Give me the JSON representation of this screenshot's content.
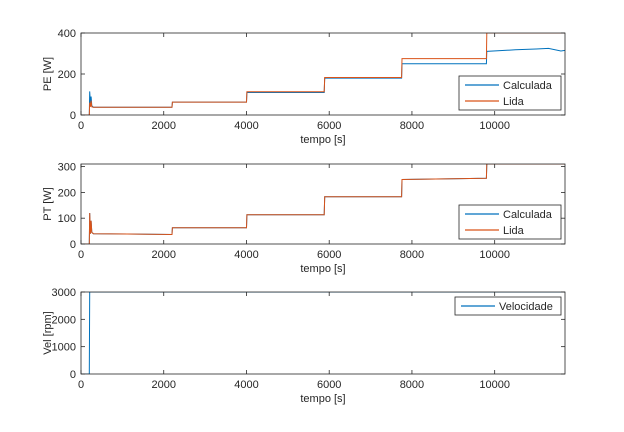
{
  "chart_data": [
    {
      "type": "line",
      "ylabel": "PE [W]",
      "xlabel": "tempo [s]",
      "xlim": [
        0,
        11700
      ],
      "ylim": [
        0,
        400
      ],
      "xticks": [
        "0",
        "2000",
        "4000",
        "6000",
        "8000",
        "10000"
      ],
      "yticks": [
        "0",
        "200",
        "400"
      ],
      "legend_position": "bottom-right",
      "series": [
        {
          "name": "Calculada",
          "color": "#0072BD",
          "x": [
            0,
            200,
            210,
            230,
            245,
            260,
            300,
            2200,
            2210,
            4000,
            4010,
            5880,
            5890,
            7750,
            7760,
            9800,
            9810,
            10500,
            11000,
            11300,
            11600,
            11700
          ],
          "y": [
            0,
            0,
            115,
            50,
            90,
            45,
            38,
            38,
            63,
            63,
            110,
            110,
            180,
            180,
            250,
            250,
            310,
            318,
            322,
            325,
            312,
            315
          ]
        },
        {
          "name": "Lida",
          "color": "#D95319",
          "x": [
            0,
            200,
            210,
            230,
            245,
            260,
            300,
            2200,
            2210,
            4000,
            4010,
            5880,
            5890,
            7750,
            7760,
            9800,
            9810,
            11700
          ],
          "y": [
            0,
            0,
            60,
            40,
            70,
            40,
            38,
            38,
            63,
            63,
            113,
            113,
            183,
            183,
            275,
            275,
            400,
            400
          ]
        }
      ]
    },
    {
      "type": "line",
      "ylabel": "PT [W]",
      "xlabel": "tempo [s]",
      "xlim": [
        0,
        11700
      ],
      "ylim": [
        0,
        310
      ],
      "xticks": [
        "0",
        "2000",
        "4000",
        "6000",
        "8000",
        "10000"
      ],
      "yticks": [
        "0",
        "100",
        "200",
        "300"
      ],
      "legend_position": "bottom-right",
      "series": [
        {
          "name": "Calculada",
          "color": "#0072BD",
          "x": [
            0,
            200,
            210,
            230,
            245,
            260,
            300,
            2200,
            2210,
            4000,
            4010,
            5880,
            5890,
            7750,
            7760,
            9800,
            9810,
            11700
          ],
          "y": [
            0,
            0,
            120,
            40,
            90,
            45,
            40,
            37,
            63,
            63,
            113,
            113,
            183,
            183,
            250,
            255,
            310,
            310
          ]
        },
        {
          "name": "Lida",
          "color": "#D95319",
          "x": [
            0,
            200,
            210,
            230,
            245,
            260,
            300,
            2200,
            2210,
            4000,
            4010,
            5880,
            5890,
            7750,
            7760,
            9800,
            9810,
            11700
          ],
          "y": [
            0,
            0,
            120,
            40,
            90,
            45,
            40,
            37,
            63,
            63,
            113,
            113,
            183,
            183,
            250,
            255,
            310,
            310
          ]
        }
      ]
    },
    {
      "type": "line",
      "ylabel": "Vel [rpm]",
      "xlabel": "tempo [s]",
      "xlim": [
        0,
        11700
      ],
      "ylim": [
        0,
        3000
      ],
      "xticks": [
        "0",
        "2000",
        "4000",
        "6000",
        "8000",
        "10000"
      ],
      "yticks": [
        "0",
        "1000",
        "2000",
        "3000"
      ],
      "legend_position": "top-right",
      "series": [
        {
          "name": "Velocidade",
          "color": "#0072BD",
          "x": [
            0,
            200,
            210,
            11700
          ],
          "y": [
            0,
            0,
            3000,
            3000
          ]
        }
      ]
    }
  ]
}
